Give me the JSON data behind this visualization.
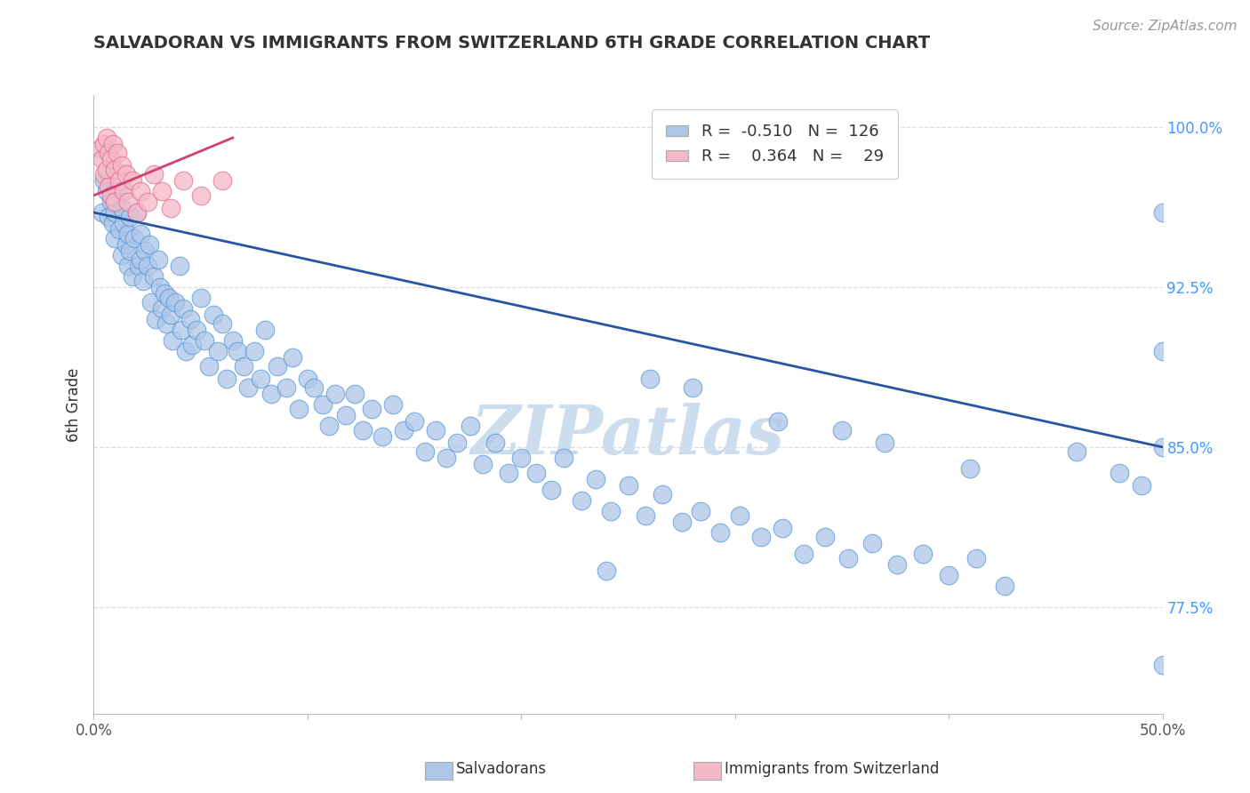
{
  "title": "SALVADORAN VS IMMIGRANTS FROM SWITZERLAND 6TH GRADE CORRELATION CHART",
  "source": "Source: ZipAtlas.com",
  "ylabel": "6th Grade",
  "xlim": [
    0.0,
    0.5
  ],
  "ylim": [
    0.725,
    1.015
  ],
  "xtick_positions": [
    0.0,
    0.1,
    0.2,
    0.3,
    0.4,
    0.5
  ],
  "xtick_labels": [
    "0.0%",
    "",
    "",
    "",
    "",
    "50.0%"
  ],
  "ytick_labels_right": [
    "100.0%",
    "92.5%",
    "85.0%",
    "77.5%"
  ],
  "ytick_positions_right": [
    1.0,
    0.925,
    0.85,
    0.775
  ],
  "watermark": "ZIPatlas",
  "blue_R": -0.51,
  "blue_N": 126,
  "pink_R": 0.364,
  "pink_N": 29,
  "blue_scatter_x": [
    0.004,
    0.005,
    0.006,
    0.007,
    0.008,
    0.009,
    0.01,
    0.01,
    0.011,
    0.012,
    0.013,
    0.013,
    0.014,
    0.015,
    0.016,
    0.016,
    0.017,
    0.017,
    0.018,
    0.019,
    0.02,
    0.021,
    0.022,
    0.022,
    0.023,
    0.024,
    0.025,
    0.026,
    0.027,
    0.028,
    0.029,
    0.03,
    0.031,
    0.032,
    0.033,
    0.034,
    0.035,
    0.036,
    0.037,
    0.038,
    0.04,
    0.041,
    0.042,
    0.043,
    0.045,
    0.046,
    0.048,
    0.05,
    0.052,
    0.054,
    0.056,
    0.058,
    0.06,
    0.062,
    0.065,
    0.067,
    0.07,
    0.072,
    0.075,
    0.078,
    0.08,
    0.083,
    0.086,
    0.09,
    0.093,
    0.096,
    0.1,
    0.103,
    0.107,
    0.11,
    0.113,
    0.118,
    0.122,
    0.126,
    0.13,
    0.135,
    0.14,
    0.145,
    0.15,
    0.155,
    0.16,
    0.165,
    0.17,
    0.176,
    0.182,
    0.188,
    0.194,
    0.2,
    0.207,
    0.214,
    0.22,
    0.228,
    0.235,
    0.242,
    0.25,
    0.258,
    0.266,
    0.275,
    0.284,
    0.293,
    0.302,
    0.312,
    0.322,
    0.332,
    0.342,
    0.353,
    0.364,
    0.376,
    0.388,
    0.4,
    0.413,
    0.426,
    0.35,
    0.28,
    0.32,
    0.37,
    0.41,
    0.46,
    0.48,
    0.49,
    0.5,
    0.5,
    0.5,
    0.5,
    0.24,
    0.26
  ],
  "blue_scatter_y": [
    0.96,
    0.975,
    0.97,
    0.958,
    0.965,
    0.955,
    0.96,
    0.948,
    0.97,
    0.952,
    0.94,
    0.962,
    0.955,
    0.945,
    0.95,
    0.935,
    0.958,
    0.942,
    0.93,
    0.948,
    0.96,
    0.935,
    0.95,
    0.938,
    0.928,
    0.942,
    0.935,
    0.945,
    0.918,
    0.93,
    0.91,
    0.938,
    0.925,
    0.915,
    0.922,
    0.908,
    0.92,
    0.912,
    0.9,
    0.918,
    0.935,
    0.905,
    0.915,
    0.895,
    0.91,
    0.898,
    0.905,
    0.92,
    0.9,
    0.888,
    0.912,
    0.895,
    0.908,
    0.882,
    0.9,
    0.895,
    0.888,
    0.878,
    0.895,
    0.882,
    0.905,
    0.875,
    0.888,
    0.878,
    0.892,
    0.868,
    0.882,
    0.878,
    0.87,
    0.86,
    0.875,
    0.865,
    0.875,
    0.858,
    0.868,
    0.855,
    0.87,
    0.858,
    0.862,
    0.848,
    0.858,
    0.845,
    0.852,
    0.86,
    0.842,
    0.852,
    0.838,
    0.845,
    0.838,
    0.83,
    0.845,
    0.825,
    0.835,
    0.82,
    0.832,
    0.818,
    0.828,
    0.815,
    0.82,
    0.81,
    0.818,
    0.808,
    0.812,
    0.8,
    0.808,
    0.798,
    0.805,
    0.795,
    0.8,
    0.79,
    0.798,
    0.785,
    0.858,
    0.878,
    0.862,
    0.852,
    0.84,
    0.848,
    0.838,
    0.832,
    0.96,
    0.895,
    0.85,
    0.748,
    0.792,
    0.882
  ],
  "pink_scatter_x": [
    0.003,
    0.004,
    0.005,
    0.005,
    0.006,
    0.006,
    0.007,
    0.007,
    0.008,
    0.008,
    0.009,
    0.01,
    0.01,
    0.011,
    0.012,
    0.013,
    0.014,
    0.015,
    0.016,
    0.018,
    0.02,
    0.022,
    0.025,
    0.028,
    0.032,
    0.036,
    0.042,
    0.05,
    0.06
  ],
  "pink_scatter_y": [
    0.99,
    0.985,
    0.992,
    0.978,
    0.995,
    0.98,
    0.988,
    0.972,
    0.985,
    0.968,
    0.992,
    0.98,
    0.965,
    0.988,
    0.975,
    0.982,
    0.97,
    0.978,
    0.965,
    0.975,
    0.96,
    0.97,
    0.965,
    0.978,
    0.97,
    0.962,
    0.975,
    0.968,
    0.975
  ],
  "blue_line_x": [
    0.0,
    0.5
  ],
  "blue_line_y": [
    0.96,
    0.85
  ],
  "pink_line_x": [
    0.0,
    0.065
  ],
  "pink_line_y": [
    0.968,
    0.995
  ],
  "blue_color": "#aec6e8",
  "blue_edge_color": "#5b9bd5",
  "blue_line_color": "#2655a3",
  "pink_color": "#f4b8c8",
  "pink_edge_color": "#e07090",
  "pink_line_color": "#d04070",
  "title_color": "#333333",
  "source_color": "#999999",
  "right_axis_color": "#4499ff",
  "watermark_color": "#ccdded",
  "grid_color": "#dddddd",
  "background_color": "#ffffff",
  "legend_r_color": "#2655a3",
  "legend_n_color": "#333333"
}
